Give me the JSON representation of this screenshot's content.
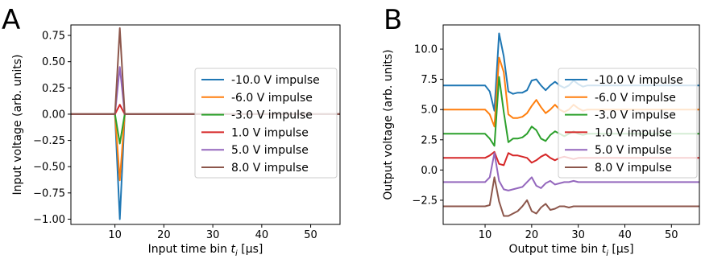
{
  "chart_data": [
    {
      "type": "line",
      "panel_label": "A",
      "xlabel": "Input time bin t_i [μs]",
      "xlabel_parts": {
        "pre": "Input time bin ",
        "var": "t",
        "sub": "i",
        "post": " [μs]"
      },
      "ylabel": "Input voltage (arb. units)",
      "xlim": [
        1,
        56
      ],
      "ylim": [
        -1.05,
        0.85
      ],
      "xticks": [
        10,
        20,
        30,
        40,
        50
      ],
      "yticks": [
        -1.0,
        -0.75,
        -0.5,
        -0.25,
        0.0,
        0.25,
        0.5,
        0.75
      ],
      "ytick_labels": [
        "−1.00",
        "−0.75",
        "−0.50",
        "−0.25",
        "0.00",
        "0.25",
        "0.50",
        "0.75"
      ],
      "grid": false,
      "legend_placement": "center-right",
      "series": [
        {
          "name": "-10.0 V impulse",
          "color": "#1f77b4",
          "x": [
            1,
            10,
            11,
            12,
            56
          ],
          "y": [
            0,
            0,
            -1.0,
            0,
            0
          ]
        },
        {
          "name": "-6.0 V impulse",
          "color": "#ff7f0e",
          "x": [
            1,
            10,
            11,
            12,
            56
          ],
          "y": [
            0,
            0,
            -0.63,
            0,
            0
          ]
        },
        {
          "name": "-3.0 V impulse",
          "color": "#2ca02c",
          "x": [
            1,
            10,
            11,
            12,
            56
          ],
          "y": [
            0,
            0,
            -0.28,
            0,
            0
          ]
        },
        {
          "name": "1.0 V impulse",
          "color": "#d62728",
          "x": [
            1,
            10,
            11,
            12,
            56
          ],
          "y": [
            0,
            0,
            0.09,
            0,
            0
          ]
        },
        {
          "name": "5.0 V impulse",
          "color": "#9467bd",
          "x": [
            1,
            10,
            11,
            12,
            56
          ],
          "y": [
            0,
            0,
            0.45,
            0,
            0
          ]
        },
        {
          "name": "8.0 V impulse",
          "color": "#8c564b",
          "x": [
            1,
            10,
            11,
            12,
            56
          ],
          "y": [
            0,
            0,
            0.82,
            0,
            0
          ]
        }
      ]
    },
    {
      "type": "line",
      "panel_label": "B",
      "xlabel": "Output time bin t_i [μs]",
      "xlabel_parts": {
        "pre": "Output time bin ",
        "var": "t",
        "sub": "i",
        "post": " [μs]"
      },
      "ylabel": "Output voltage (arb. units)",
      "xlim": [
        1,
        56
      ],
      "ylim": [
        -4.5,
        12.0
      ],
      "xticks": [
        10,
        20,
        30,
        40,
        50
      ],
      "yticks": [
        -2.5,
        0.0,
        2.5,
        5.0,
        7.5,
        10.0
      ],
      "ytick_labels": [
        "−2.5",
        "0.0",
        "2.5",
        "5.0",
        "7.5",
        "10.0"
      ],
      "grid": false,
      "legend_placement": "right",
      "series": [
        {
          "name": "-10.0 V impulse",
          "color": "#1f77b4",
          "x": [
            1,
            10,
            11,
            12,
            13,
            14,
            15,
            16,
            17,
            18,
            19,
            20,
            21,
            22,
            23,
            24,
            25,
            26,
            27,
            28,
            29,
            30,
            31,
            32,
            33,
            34,
            35,
            36,
            56
          ],
          "y": [
            7.0,
            7.0,
            6.5,
            4.9,
            11.3,
            9.4,
            6.5,
            6.3,
            6.4,
            6.4,
            6.6,
            7.4,
            7.5,
            7.0,
            6.6,
            7.0,
            7.3,
            7.0,
            6.8,
            7.0,
            7.4,
            7.1,
            6.9,
            7.0,
            7.0,
            7.0,
            7.0,
            7.0,
            7.0
          ]
        },
        {
          "name": "-6.0 V impulse",
          "color": "#ff7f0e",
          "x": [
            1,
            10,
            11,
            12,
            13,
            14,
            15,
            16,
            17,
            18,
            19,
            20,
            21,
            22,
            23,
            24,
            25,
            26,
            27,
            28,
            29,
            30,
            31,
            32,
            33,
            34,
            35,
            36,
            56
          ],
          "y": [
            5.0,
            5.0,
            4.6,
            3.6,
            9.3,
            8.1,
            4.6,
            4.3,
            4.3,
            4.4,
            4.7,
            5.3,
            5.8,
            5.2,
            4.7,
            5.0,
            5.4,
            5.0,
            4.8,
            5.0,
            5.4,
            5.1,
            4.9,
            5.0,
            5.0,
            5.0,
            5.0,
            5.0,
            5.0
          ]
        },
        {
          "name": "-3.0 V impulse",
          "color": "#2ca02c",
          "x": [
            1,
            10,
            11,
            12,
            13,
            14,
            15,
            16,
            17,
            18,
            19,
            20,
            21,
            22,
            23,
            24,
            25,
            26,
            27,
            28,
            29,
            30,
            31,
            32,
            33,
            34,
            35,
            36,
            56
          ],
          "y": [
            3.0,
            3.0,
            2.6,
            2.0,
            7.7,
            4.8,
            2.3,
            2.6,
            2.6,
            2.7,
            3.0,
            3.6,
            3.3,
            2.6,
            2.4,
            2.9,
            3.2,
            3.0,
            2.8,
            3.0,
            3.2,
            3.0,
            2.9,
            3.0,
            3.0,
            3.0,
            3.0,
            3.0,
            3.0
          ]
        },
        {
          "name": "1.0 V impulse",
          "color": "#d62728",
          "x": [
            1,
            10,
            11,
            12,
            13,
            14,
            15,
            16,
            17,
            18,
            19,
            20,
            21,
            22,
            23,
            24,
            25,
            26,
            27,
            28,
            29,
            30,
            31,
            32,
            33,
            34,
            35,
            36,
            56
          ],
          "y": [
            1.0,
            1.0,
            1.2,
            1.5,
            0.5,
            0.4,
            1.4,
            1.2,
            1.2,
            1.1,
            1.0,
            0.6,
            0.8,
            1.1,
            1.3,
            1.0,
            0.8,
            1.0,
            1.1,
            1.0,
            0.9,
            1.0,
            1.0,
            1.0,
            1.0,
            1.0,
            1.0,
            1.0,
            1.0
          ]
        },
        {
          "name": "5.0 V impulse",
          "color": "#9467bd",
          "x": [
            1,
            10,
            11,
            12,
            13,
            14,
            15,
            16,
            17,
            18,
            19,
            20,
            21,
            22,
            23,
            24,
            25,
            26,
            27,
            28,
            29,
            30,
            31,
            32,
            33,
            34,
            35,
            36,
            56
          ],
          "y": [
            -1.0,
            -1.0,
            -0.6,
            1.4,
            -0.9,
            -1.6,
            -1.7,
            -1.6,
            -1.5,
            -1.4,
            -1.0,
            -0.6,
            -1.3,
            -1.5,
            -1.1,
            -0.9,
            -1.2,
            -1.1,
            -1.0,
            -1.0,
            -0.9,
            -1.0,
            -1.0,
            -1.0,
            -1.0,
            -1.0,
            -1.0,
            -1.0,
            -1.0
          ]
        },
        {
          "name": "8.0 V impulse",
          "color": "#8c564b",
          "x": [
            1,
            10,
            11,
            12,
            13,
            14,
            15,
            16,
            17,
            18,
            19,
            20,
            21,
            22,
            23,
            24,
            25,
            26,
            27,
            28,
            29,
            30,
            31,
            32,
            33,
            34,
            35,
            36,
            56
          ],
          "y": [
            -3.0,
            -3.0,
            -2.9,
            -0.6,
            -2.6,
            -3.8,
            -3.8,
            -3.6,
            -3.4,
            -3.0,
            -2.5,
            -3.4,
            -3.6,
            -3.1,
            -2.8,
            -3.3,
            -3.2,
            -3.0,
            -3.0,
            -3.1,
            -3.0,
            -3.0,
            -3.0,
            -3.0,
            -3.0,
            -3.0,
            -3.0,
            -3.0,
            -3.0
          ]
        }
      ]
    }
  ]
}
